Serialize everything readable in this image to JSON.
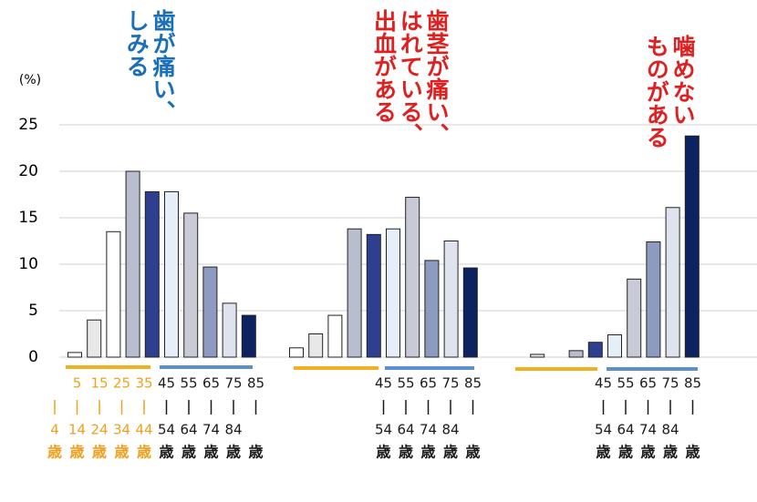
{
  "chart_data": {
    "type": "bar",
    "ylabel": "(%)",
    "ylim": [
      0,
      25
    ],
    "yticks": [
      0,
      5,
      10,
      15,
      20,
      25
    ],
    "grid": true,
    "age_unit": "歳",
    "colors": [
      "#ffffff",
      "#e8e8e8",
      "#ffffff",
      "#b8bdd0",
      "#2e3f8f",
      "#e6eef8",
      "#c8cad6",
      "#8d9bc0",
      "#dfe3ee",
      "#0d2260"
    ],
    "age_colors": [
      "#f0a020",
      "#f0a020",
      "#f0a020",
      "#f0a020",
      "#f0a020",
      "#1a1a1a",
      "#1a1a1a",
      "#1a1a1a",
      "#1a1a1a",
      "#1a1a1a"
    ],
    "groups": [
      {
        "title_lines": [
          "歯が痛い、",
          "しみる"
        ],
        "title_color": "#1a6fb8",
        "values": [
          0.5,
          4,
          13.5,
          20,
          17.8,
          17.8,
          15.5,
          9.7,
          5.8,
          4.5
        ],
        "age_from": [
          null,
          "5",
          "15",
          "25",
          "35",
          "45",
          "55",
          "65",
          "75",
          "85"
        ],
        "age_to": [
          "4",
          "14",
          "24",
          "34",
          "44",
          "54",
          "64",
          "74",
          "84",
          null
        ]
      },
      {
        "title_lines": [
          "歯茎が痛い、",
          "はれている、",
          "出血がある"
        ],
        "title_color": "#e02020",
        "values": [
          1,
          2.5,
          4.5,
          13.8,
          13.2,
          13.8,
          17.2,
          10.4,
          12.5,
          9.6
        ],
        "age_from": [
          null,
          null,
          null,
          null,
          null,
          "45",
          "55",
          "65",
          "75",
          "85"
        ],
        "age_to": [
          null,
          null,
          null,
          null,
          null,
          "54",
          "64",
          "74",
          "84",
          null
        ]
      },
      {
        "title_lines": [
          "噛めない",
          "ものがある"
        ],
        "title_color": "#e02020",
        "values": [
          0,
          0.3,
          0,
          0.7,
          1.6,
          2.4,
          8.4,
          12.4,
          16.1,
          23.8
        ],
        "age_from": [
          null,
          null,
          null,
          null,
          null,
          "45",
          "55",
          "65",
          "75",
          "85"
        ],
        "age_to": [
          null,
          null,
          null,
          null,
          null,
          "54",
          "64",
          "74",
          "84",
          null
        ]
      }
    ]
  }
}
